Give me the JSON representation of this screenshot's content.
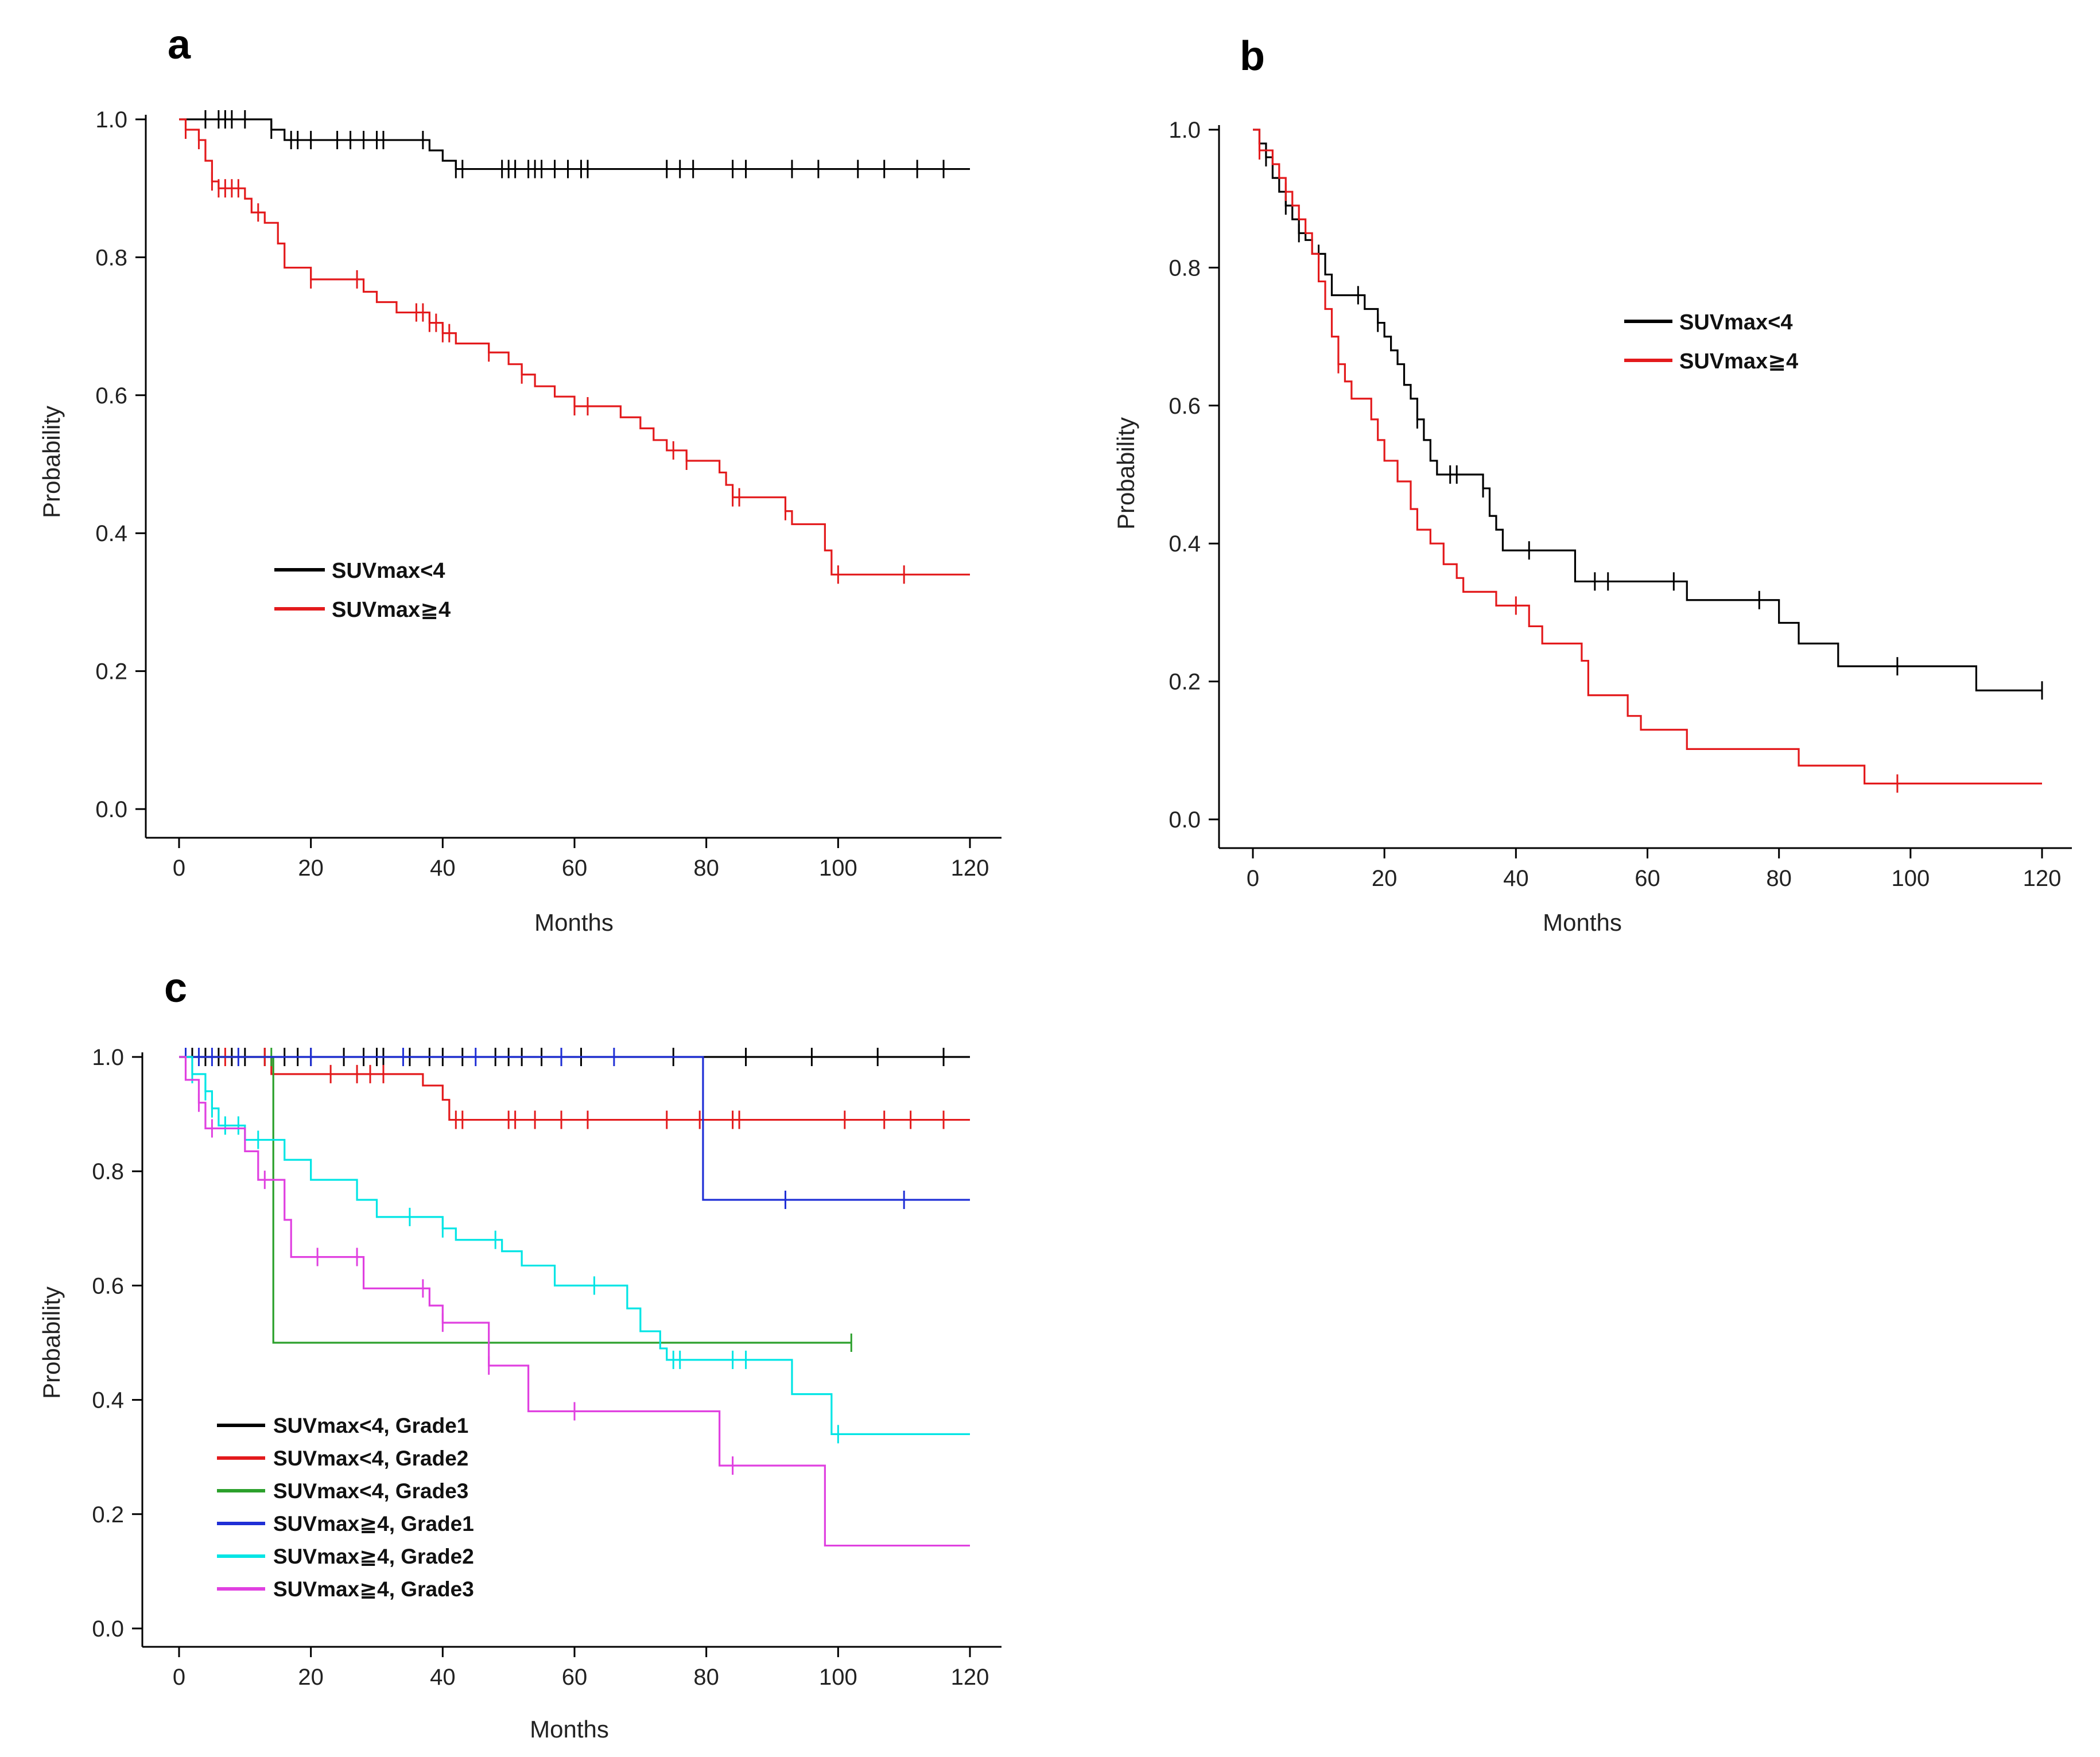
{
  "figure": {
    "panels": [
      "a",
      "b",
      "c"
    ]
  },
  "chart_data": [
    {
      "type": "line",
      "panel_label": "a",
      "xlabel": "Months",
      "ylabel": "Probability",
      "xlim": [
        0,
        120
      ],
      "ylim": [
        0,
        1
      ],
      "x_ticks": [
        "0",
        "20",
        "40",
        "60",
        "80",
        "100",
        "120"
      ],
      "y_ticks": [
        "0.0",
        "0.2",
        "0.4",
        "0.6",
        "0.8",
        "1.0"
      ],
      "legend_position": "lower-left",
      "series": [
        {
          "name": "SUVmax<4",
          "color": "#000000",
          "steps": [
            [
              0,
              1.0
            ],
            [
              14,
              0.985
            ],
            [
              16,
              0.97
            ],
            [
              38,
              0.955
            ],
            [
              40,
              0.94
            ],
            [
              42,
              0.928
            ],
            [
              120,
              0.928
            ]
          ],
          "censors": [
            4,
            6,
            7,
            8,
            10,
            14,
            17,
            18,
            20,
            24,
            26,
            28,
            30,
            31,
            37,
            42,
            43,
            49,
            50,
            51,
            53,
            54,
            55,
            57,
            59,
            61,
            62,
            74,
            76,
            78,
            84,
            86,
            93,
            97,
            103,
            107,
            112,
            116
          ]
        },
        {
          "name": "SUVmax≧4",
          "color": "#e31a1c",
          "steps": [
            [
              0,
              1.0
            ],
            [
              1,
              0.985
            ],
            [
              3,
              0.97
            ],
            [
              4,
              0.94
            ],
            [
              5,
              0.91
            ],
            [
              6,
              0.9
            ],
            [
              10,
              0.885
            ],
            [
              11,
              0.865
            ],
            [
              13,
              0.85
            ],
            [
              15,
              0.82
            ],
            [
              16,
              0.785
            ],
            [
              20,
              0.768
            ],
            [
              28,
              0.75
            ],
            [
              30,
              0.735
            ],
            [
              33,
              0.72
            ],
            [
              38,
              0.705
            ],
            [
              40,
              0.69
            ],
            [
              42,
              0.675
            ],
            [
              47,
              0.662
            ],
            [
              50,
              0.645
            ],
            [
              52,
              0.63
            ],
            [
              54,
              0.613
            ],
            [
              57,
              0.598
            ],
            [
              60,
              0.584
            ],
            [
              67,
              0.568
            ],
            [
              70,
              0.552
            ],
            [
              72,
              0.535
            ],
            [
              74,
              0.52
            ],
            [
              77,
              0.505
            ],
            [
              82,
              0.488
            ],
            [
              83,
              0.47
            ],
            [
              84,
              0.452
            ],
            [
              92,
              0.432
            ],
            [
              93,
              0.413
            ],
            [
              98,
              0.375
            ],
            [
              99,
              0.34
            ],
            [
              120,
              0.34
            ]
          ],
          "censors": [
            1,
            3,
            5,
            6,
            7,
            8,
            9,
            12,
            20,
            27,
            36,
            37,
            38,
            39,
            40,
            41,
            47,
            52,
            60,
            62,
            75,
            77,
            84,
            85,
            92,
            100,
            110
          ]
        }
      ]
    },
    {
      "type": "line",
      "panel_label": "b",
      "xlabel": "Months",
      "ylabel": "Probability",
      "xlim": [
        0,
        120
      ],
      "ylim": [
        0,
        1
      ],
      "x_ticks": [
        "0",
        "20",
        "40",
        "60",
        "80",
        "100",
        "120"
      ],
      "y_ticks": [
        "0.0",
        "0.2",
        "0.4",
        "0.6",
        "0.8",
        "1.0"
      ],
      "legend_position": "upper-right",
      "series": [
        {
          "name": "SUVmax<4",
          "color": "#000000",
          "steps": [
            [
              0,
              1.0
            ],
            [
              1,
              0.98
            ],
            [
              2,
              0.96
            ],
            [
              3,
              0.93
            ],
            [
              4,
              0.91
            ],
            [
              5,
              0.89
            ],
            [
              6,
              0.87
            ],
            [
              7,
              0.85
            ],
            [
              8,
              0.84
            ],
            [
              9,
              0.82
            ],
            [
              11,
              0.79
            ],
            [
              12,
              0.76
            ],
            [
              17,
              0.74
            ],
            [
              19,
              0.72
            ],
            [
              20,
              0.7
            ],
            [
              21,
              0.68
            ],
            [
              22,
              0.66
            ],
            [
              23,
              0.63
            ],
            [
              24,
              0.61
            ],
            [
              25,
              0.58
            ],
            [
              26,
              0.55
            ],
            [
              27,
              0.52
            ],
            [
              28,
              0.5
            ],
            [
              35,
              0.48
            ],
            [
              36,
              0.44
            ],
            [
              37,
              0.42
            ],
            [
              38,
              0.39
            ],
            [
              49,
              0.345
            ],
            [
              66,
              0.318
            ],
            [
              80,
              0.285
            ],
            [
              83,
              0.255
            ],
            [
              89,
              0.222
            ],
            [
              110,
              0.187
            ],
            [
              120,
              0.187
            ]
          ],
          "censors": [
            2,
            5,
            7,
            10,
            16,
            19,
            25,
            30,
            31,
            35,
            42,
            52,
            54,
            64,
            77,
            98,
            120
          ]
        },
        {
          "name": "SUVmax≧4",
          "color": "#e31a1c",
          "steps": [
            [
              0,
              1.0
            ],
            [
              1,
              0.97
            ],
            [
              3,
              0.95
            ],
            [
              4,
              0.93
            ],
            [
              5,
              0.91
            ],
            [
              6,
              0.89
            ],
            [
              7,
              0.87
            ],
            [
              8,
              0.85
            ],
            [
              9,
              0.82
            ],
            [
              10,
              0.78
            ],
            [
              11,
              0.74
            ],
            [
              12,
              0.7
            ],
            [
              13,
              0.66
            ],
            [
              14,
              0.635
            ],
            [
              15,
              0.61
            ],
            [
              18,
              0.58
            ],
            [
              19,
              0.55
            ],
            [
              20,
              0.52
            ],
            [
              22,
              0.49
            ],
            [
              24,
              0.45
            ],
            [
              25,
              0.42
            ],
            [
              27,
              0.4
            ],
            [
              29,
              0.37
            ],
            [
              31,
              0.35
            ],
            [
              32,
              0.33
            ],
            [
              37,
              0.31
            ],
            [
              42,
              0.28
            ],
            [
              44,
              0.255
            ],
            [
              50,
              0.23
            ],
            [
              51,
              0.18
            ],
            [
              57,
              0.15
            ],
            [
              59,
              0.13
            ],
            [
              66,
              0.102
            ],
            [
              83,
              0.078
            ],
            [
              93,
              0.052
            ],
            [
              120,
              0.052
            ]
          ],
          "censors": [
            1,
            5,
            13,
            40,
            98
          ]
        }
      ]
    },
    {
      "type": "line",
      "panel_label": "c",
      "xlabel": "Months",
      "ylabel": "Probability",
      "xlim": [
        0,
        120
      ],
      "ylim": [
        0,
        1
      ],
      "x_ticks": [
        "0",
        "20",
        "40",
        "60",
        "80",
        "100",
        "120"
      ],
      "y_ticks": [
        "0.0",
        "0.2",
        "0.4",
        "0.6",
        "0.8",
        "1.0"
      ],
      "legend_position": "lower-left",
      "series": [
        {
          "name": "SUVmax<4, Grade1",
          "color": "#000000",
          "steps": [
            [
              0,
              1.0
            ],
            [
              120,
              1.0
            ]
          ],
          "censors": [
            2,
            4,
            6,
            8,
            10,
            13,
            16,
            18,
            20,
            25,
            28,
            30,
            31,
            35,
            38,
            40,
            43,
            48,
            50,
            52,
            55,
            58,
            61,
            75,
            86,
            96,
            106,
            116
          ]
        },
        {
          "name": "SUVmax<4, Grade2",
          "color": "#e31a1c",
          "steps": [
            [
              0,
              1.0
            ],
            [
              14,
              0.97
            ],
            [
              37,
              0.95
            ],
            [
              40,
              0.925
            ],
            [
              41,
              0.89
            ],
            [
              120,
              0.89
            ]
          ],
          "censors": [
            7,
            13,
            23,
            27,
            29,
            31,
            42,
            43,
            50,
            51,
            54,
            58,
            62,
            74,
            79,
            84,
            85,
            101,
            107,
            111,
            116
          ]
        },
        {
          "name": "SUVmax<4, Grade3",
          "color": "#2ca02c",
          "steps": [
            [
              0,
              1.0
            ],
            [
              14,
              1.0
            ],
            [
              14.3,
              0.5
            ],
            [
              102,
              0.5
            ]
          ],
          "censors": [
            14,
            102
          ]
        },
        {
          "name": "SUVmax≧4, Grade1",
          "color": "#1f2fd6",
          "steps": [
            [
              0,
              1.0
            ],
            [
              79,
              1.0
            ],
            [
              79.5,
              0.75
            ],
            [
              120,
              0.75
            ]
          ],
          "censors": [
            1,
            3,
            5,
            9,
            20,
            34,
            45,
            58,
            66,
            92,
            110
          ]
        },
        {
          "name": "SUVmax≧4, Grade2",
          "color": "#00e5e5",
          "steps": [
            [
              0,
              1.0
            ],
            [
              2,
              0.97
            ],
            [
              4,
              0.94
            ],
            [
              5,
              0.91
            ],
            [
              6,
              0.88
            ],
            [
              10,
              0.855
            ],
            [
              16,
              0.82
            ],
            [
              20,
              0.785
            ],
            [
              27,
              0.75
            ],
            [
              30,
              0.72
            ],
            [
              40,
              0.7
            ],
            [
              42,
              0.68
            ],
            [
              49,
              0.66
            ],
            [
              52,
              0.635
            ],
            [
              57,
              0.6
            ],
            [
              68,
              0.56
            ],
            [
              70,
              0.52
            ],
            [
              73,
              0.49
            ],
            [
              74,
              0.47
            ],
            [
              93,
              0.41
            ],
            [
              99,
              0.34
            ],
            [
              120,
              0.34
            ]
          ],
          "censors": [
            2,
            4,
            5,
            7,
            9,
            12,
            35,
            40,
            48,
            63,
            75,
            76,
            84,
            86,
            100
          ]
        },
        {
          "name": "SUVmax≧4, Grade3",
          "color": "#e040e0",
          "steps": [
            [
              0,
              1.0
            ],
            [
              1,
              0.96
            ],
            [
              3,
              0.92
            ],
            [
              4,
              0.875
            ],
            [
              10,
              0.835
            ],
            [
              12,
              0.785
            ],
            [
              16,
              0.715
            ],
            [
              17,
              0.65
            ],
            [
              28,
              0.595
            ],
            [
              38,
              0.565
            ],
            [
              40,
              0.535
            ],
            [
              47,
              0.46
            ],
            [
              53,
              0.38
            ],
            [
              82,
              0.285
            ],
            [
              98,
              0.145
            ],
            [
              120,
              0.145
            ]
          ],
          "censors": [
            3,
            5,
            13,
            21,
            27,
            37,
            40,
            47,
            60,
            84
          ]
        }
      ]
    }
  ]
}
